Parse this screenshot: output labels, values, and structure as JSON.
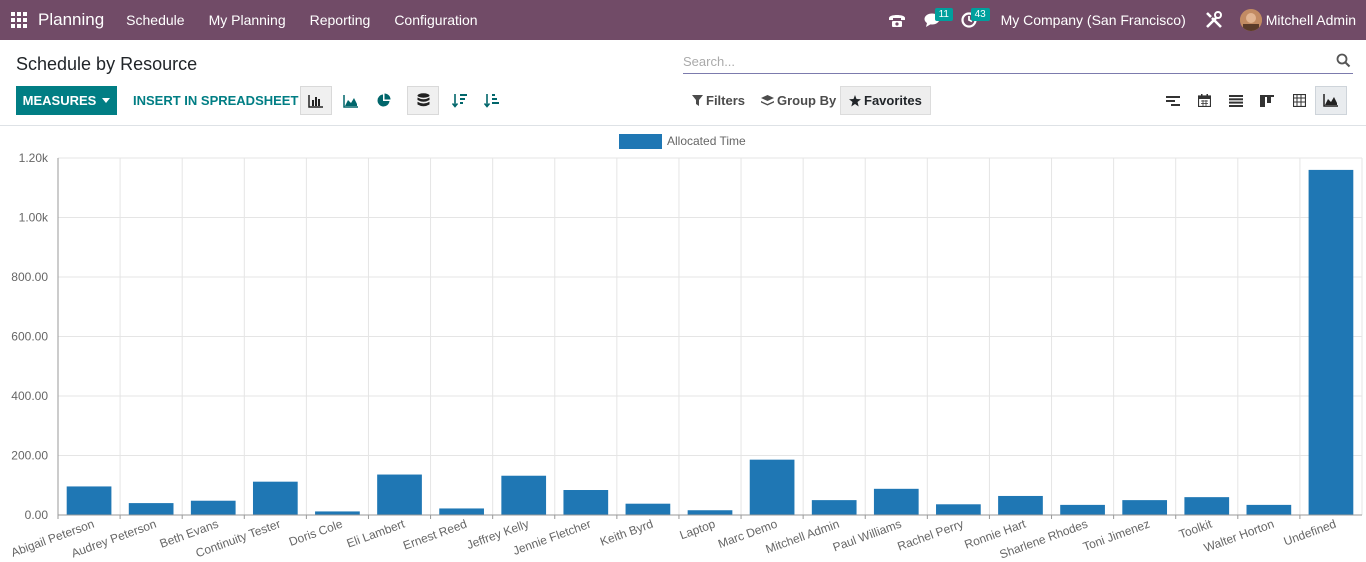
{
  "navbar": {
    "brand": "Planning",
    "menu": [
      "Schedule",
      "My Planning",
      "Reporting",
      "Configuration"
    ],
    "messages_count": "11",
    "activities_count": "43",
    "company": "My Company (San Francisco)",
    "user": "Mitchell Admin"
  },
  "control_panel": {
    "title": "Schedule by Resource",
    "search_placeholder": "Search...",
    "measures_label": "MEASURES",
    "insert_label": "INSERT IN SPREADSHEET",
    "filters_label": "Filters",
    "groupby_label": "Group By",
    "favorites_label": "Favorites"
  },
  "icons": {
    "apps": "apps-grid-icon",
    "phone": "phone-icon",
    "messages": "chat-icon",
    "activities": "clock-icon",
    "settings": "tools-icon",
    "search": "search-icon",
    "bar": "bar-chart-icon",
    "line": "line-chart-icon",
    "pie": "pie-chart-icon",
    "stacked": "database-icon",
    "sort_desc": "sort-desc-icon",
    "sort_asc": "sort-asc-icon",
    "filter": "filter-icon",
    "layers": "layers-icon",
    "star": "star-icon",
    "gantt": "gantt-icon",
    "calendar": "calendar-icon",
    "list": "list-icon",
    "kanban": "kanban-icon",
    "pivot": "pivot-icon",
    "graph": "graph-icon"
  },
  "colors": {
    "navbar": "#714b67",
    "primary": "#017e84",
    "bar": "#1f77b4"
  },
  "chart_data": {
    "type": "bar",
    "legend": [
      "Allocated Time"
    ],
    "categories": [
      "Abigail Peterson",
      "Audrey Peterson",
      "Beth Evans",
      "Continuity Tester",
      "Doris Cole",
      "Eli Lambert",
      "Ernest Reed",
      "Jeffrey Kelly",
      "Jennie Fletcher",
      "Keith Byrd",
      "Laptop",
      "Marc Demo",
      "Mitchell Admin",
      "Paul Williams",
      "Rachel Perry",
      "Ronnie Hart",
      "Sharlene Rhodes",
      "Toni Jimenez",
      "Toolkit",
      "Walter Horton",
      "Undefined"
    ],
    "series": [
      {
        "name": "Allocated Time",
        "values": [
          96,
          40,
          48,
          112,
          12,
          136,
          22,
          132,
          84,
          38,
          16,
          186,
          50,
          88,
          36,
          64,
          34,
          50,
          60,
          34,
          1160
        ]
      }
    ],
    "ylim": [
      0,
      1200
    ],
    "yticks": [
      0,
      200,
      400,
      600,
      800,
      1000,
      1200
    ],
    "ytick_labels": [
      "0.00",
      "200.00",
      "400.00",
      "600.00",
      "800.00",
      "1.00k",
      "1.20k"
    ],
    "grid": true,
    "legend_position": "top-center"
  }
}
